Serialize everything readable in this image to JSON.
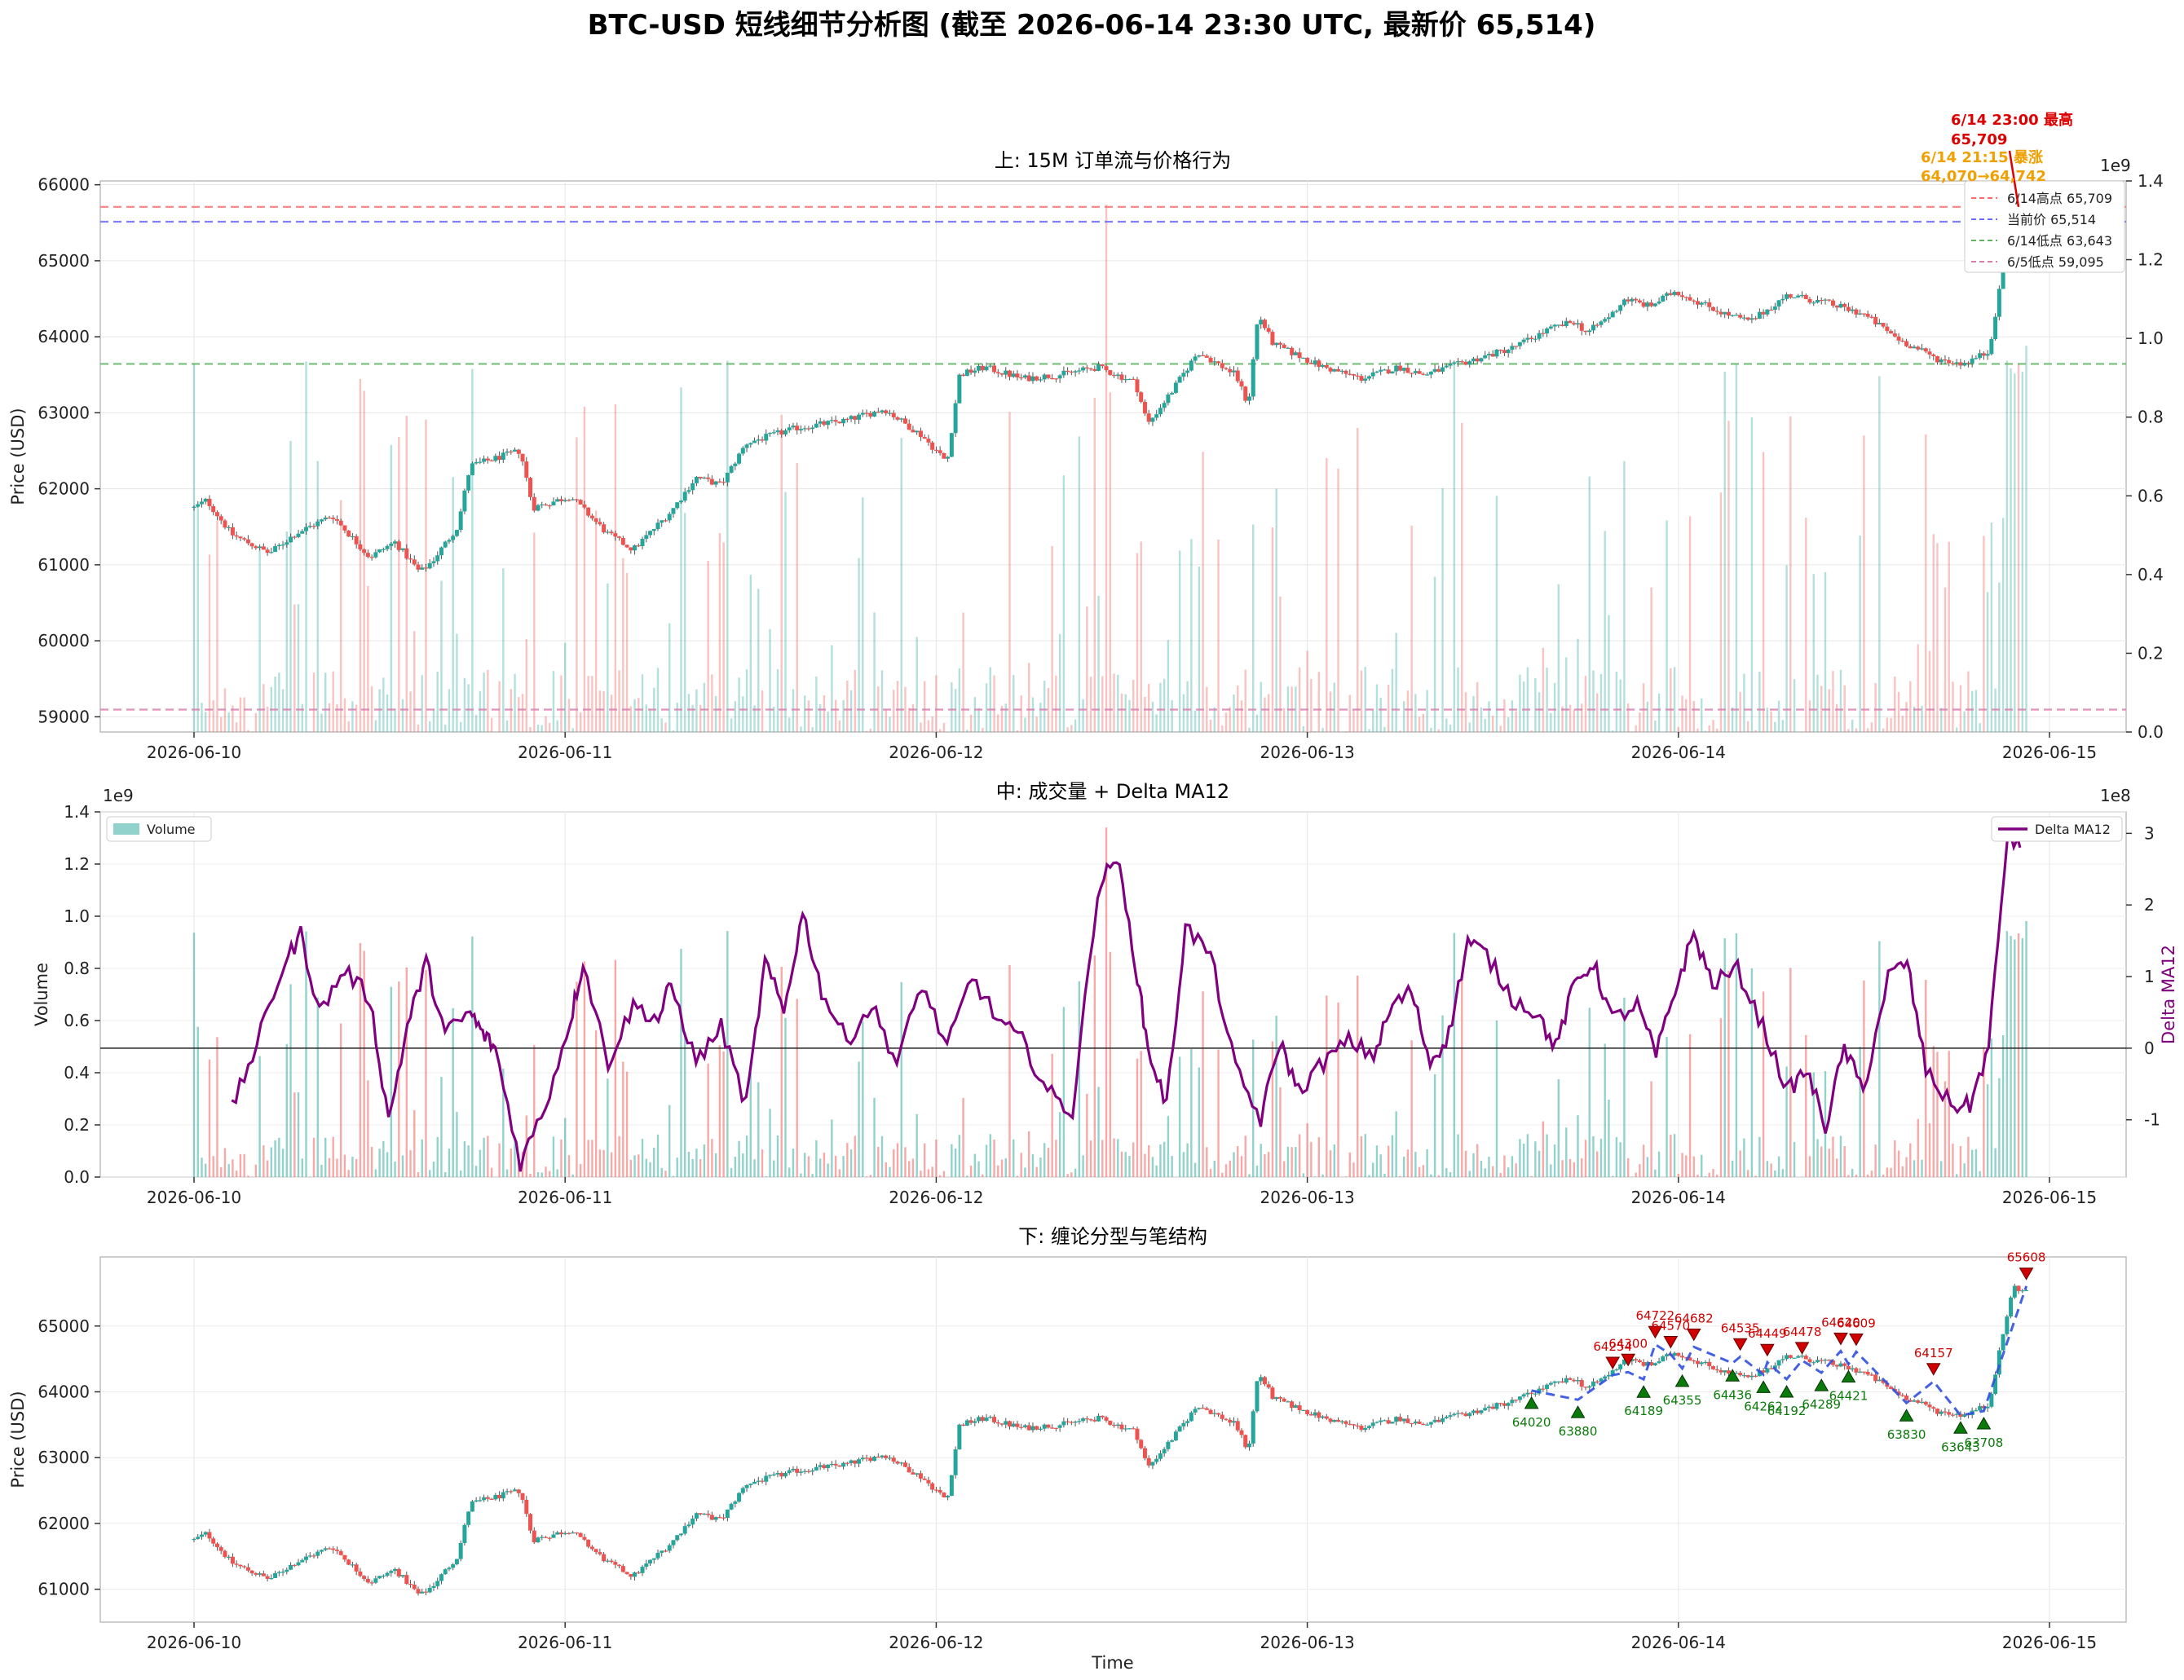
{
  "suptitle": "BTC-USD 短线细节分析图 (截至 2026-06-14 23:30 UTC, 最新价 65,514)",
  "colors": {
    "up": "#26a69a",
    "down": "#ef5350",
    "delta": "#800080",
    "high_line": "#ff6b6b",
    "current_line": "#6b6bff",
    "low_line": "#5fb55f",
    "low65_line": "#d97fb0",
    "top_fractal": "#d00000",
    "bottom_fractal": "#0a7a0a",
    "stroke_line": "#3050e0",
    "ann_red": "#dd0000",
    "ann_orange": "#f0a000"
  },
  "chart_data": [
    {
      "type": "candlestick",
      "title": "上: 15M 订单流与价格行为",
      "ylabel": "Price (USD)",
      "ylim": [
        58800,
        66050
      ],
      "yticks": [
        "59000",
        "60000",
        "61000",
        "62000",
        "63000",
        "64000",
        "65000",
        "66000"
      ],
      "y2lim": [
        0,
        1400000000.0
      ],
      "y2ticks": [
        "0.0",
        "0.2",
        "0.4",
        "0.6",
        "0.8",
        "1.0",
        "1.2",
        "1.4"
      ],
      "y2_offset": "1e9",
      "xticks": [
        "2026-06-10",
        "2026-06-11",
        "2026-06-12",
        "2026-06-13",
        "2026-06-14",
        "2026-06-15"
      ],
      "grid": true,
      "legend_position": "upper-right",
      "hlines": [
        {
          "name": "6/14高点 65,709",
          "value": 65709
        },
        {
          "name": "当前价 65,514",
          "value": 65514
        },
        {
          "name": "6/14低点 63,643",
          "value": 63643
        },
        {
          "name": "6/5低点 59,095",
          "value": 59095
        }
      ],
      "annotations": [
        {
          "text": "6/14 23:00 最高",
          "value": "65,709",
          "x": "2026-06-14 23:00",
          "y": 65709
        },
        {
          "text": "6/14 21:15 暴涨",
          "value": "64,070→64,742",
          "x": "2026-06-14 21:15",
          "y": 64742
        }
      ],
      "price_path": [
        [
          "2026-06-10 00:00",
          61750
        ],
        [
          "2026-06-10 01:00",
          61850
        ],
        [
          "2026-06-10 02:00",
          61600
        ],
        [
          "2026-06-10 04:00",
          61350
        ],
        [
          "2026-06-10 06:00",
          61450
        ],
        [
          "2026-06-10 08:00",
          61200
        ],
        [
          "2026-06-10 10:00",
          61400
        ],
        [
          "2026-06-10 12:00",
          61600
        ],
        [
          "2026-06-10 14:00",
          61500
        ],
        [
          "2026-06-10 16:00",
          61050
        ],
        [
          "2026-06-10 18:00",
          61250
        ],
        [
          "2026-06-10 20:00",
          61000
        ],
        [
          "2026-06-10 22:00",
          61300
        ],
        [
          "2026-06-11 00:00",
          61500
        ],
        [
          "2026-06-10 22:30",
          61700
        ],
        [
          "2026-06-11 00:30",
          62300
        ],
        [
          "2026-06-11 02:00",
          62600
        ],
        [
          "2026-06-11 04:00",
          62100
        ],
        [
          "2026-06-11 06:00",
          61900
        ],
        [
          "2026-06-11 08:00",
          61800
        ],
        [
          "2026-06-11 10:00",
          61500
        ],
        [
          "2026-06-11 12:00",
          61200
        ],
        [
          "2026-06-11 14:00",
          61500
        ],
        [
          "2026-06-11 16:00",
          61900
        ],
        [
          "2026-06-11 18:00",
          62100
        ],
        [
          "2026-06-11 20:00",
          62600
        ],
        [
          "2026-06-11 22:00",
          62750
        ]
      ]
    },
    {
      "type": "bar+line",
      "title": "中: 成交量 + Delta MA12",
      "ylabel": "Volume",
      "ylim": [
        0,
        1400000000.0
      ],
      "yticks": [
        "0.0",
        "0.2",
        "0.4",
        "0.6",
        "0.8",
        "1.0",
        "1.2",
        "1.4"
      ],
      "y_offset": "1e9",
      "y2label": "Delta MA12",
      "y2lim": [
        -180000000.0,
        330000000.0
      ],
      "y2ticks": [
        "-1",
        "0",
        "1",
        "2",
        "3"
      ],
      "y2_offset": "1e8",
      "xticks": [
        "2026-06-10",
        "2026-06-11",
        "2026-06-12",
        "2026-06-13",
        "2026-06-14",
        "2026-06-15"
      ],
      "series": [
        {
          "name": "Volume"
        },
        {
          "name": "Delta MA12"
        }
      ],
      "delta_path": [
        [
          "2026-06-10 03:00",
          -85000000.0
        ],
        [
          "2026-06-10 05:00",
          5000000.0
        ],
        [
          "2026-06-10 07:00",
          110000000.0
        ],
        [
          "2026-06-10 09:00",
          160000000.0
        ],
        [
          "2026-06-10 12:00",
          60000000.0
        ],
        [
          "2026-06-10 14:00",
          110000000.0
        ],
        [
          "2026-06-10 16:00",
          -105000000.0
        ],
        [
          "2026-06-10 18:00",
          50000000.0
        ],
        [
          "2026-06-10 20:00",
          120000000.0
        ],
        [
          "2026-06-11 00:00",
          20000000.0
        ],
        [
          "2026-06-11 04:00",
          -160000000.0
        ],
        [
          "2026-06-11 08:00",
          130000000.0
        ]
      ]
    },
    {
      "type": "candlestick",
      "title": "下: 缠论分型与笔结构",
      "xlabel": "Time",
      "ylabel": "Price (USD)",
      "ylim": [
        60500,
        66050
      ],
      "yticks": [
        "61000",
        "62000",
        "63000",
        "64000",
        "65000"
      ],
      "xticks": [
        "2026-06-10",
        "2026-06-11",
        "2026-06-12",
        "2026-06-13",
        "2026-06-14",
        "2026-06-15"
      ],
      "grid": true,
      "top_fractals": [
        {
          "x": "2026-06-13 19:45",
          "y": 64254,
          "label": "64254"
        },
        {
          "x": "2026-06-13 20:45",
          "y": 64300,
          "label": "64300"
        },
        {
          "x": "2026-06-13 22:30",
          "y": 64722,
          "label": "64722"
        },
        {
          "x": "2026-06-13 23:30",
          "y": 64570,
          "label": "64570"
        },
        {
          "x": "2026-06-14 01:00",
          "y": 64682,
          "label": "64682"
        },
        {
          "x": "2026-06-14 04:00",
          "y": 64535,
          "label": "64535"
        },
        {
          "x": "2026-06-14 05:45",
          "y": 64449,
          "label": "64449"
        },
        {
          "x": "2026-06-14 08:00",
          "y": 64478,
          "label": "64478"
        },
        {
          "x": "2026-06-14 10:30",
          "y": 64620,
          "label": "64620"
        },
        {
          "x": "2026-06-14 11:30",
          "y": 64609,
          "label": "64609"
        },
        {
          "x": "2026-06-14 16:30",
          "y": 64157,
          "label": "64157"
        },
        {
          "x": "2026-06-14 22:30",
          "y": 65608,
          "label": "65608"
        }
      ],
      "bottom_fractals": [
        {
          "x": "2026-06-13 14:30",
          "y": 64020,
          "label": "64020"
        },
        {
          "x": "2026-06-13 17:30",
          "y": 63880,
          "label": "63880"
        },
        {
          "x": "2026-06-13 21:45",
          "y": 64189,
          "label": "64189"
        },
        {
          "x": "2026-06-14 00:15",
          "y": 64355,
          "label": "64355"
        },
        {
          "x": "2026-06-14 03:30",
          "y": 64436,
          "label": "64436"
        },
        {
          "x": "2026-06-14 05:30",
          "y": 64262,
          "label": "64262"
        },
        {
          "x": "2026-06-14 07:00",
          "y": 64192,
          "label": "64192"
        },
        {
          "x": "2026-06-14 09:15",
          "y": 64289,
          "label": "64289"
        },
        {
          "x": "2026-06-14 11:00",
          "y": 64421,
          "label": "64421"
        },
        {
          "x": "2026-06-14 14:45",
          "y": 63830,
          "label": "63830"
        },
        {
          "x": "2026-06-14 18:15",
          "y": 63643,
          "label": "63643"
        },
        {
          "x": "2026-06-14 19:45",
          "y": 63708,
          "label": "63708"
        }
      ]
    }
  ]
}
